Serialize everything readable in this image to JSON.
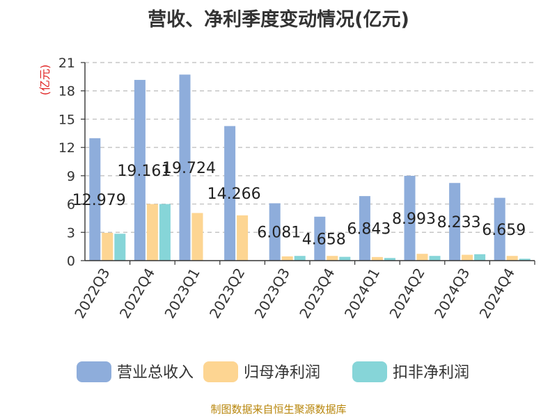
{
  "title": "营收、净利季度变动情况(亿元)",
  "source": "制图数据来自恒生聚源数据库",
  "colors": {
    "revenue": "#8EADDB",
    "net_profit": "#FDD592",
    "deducted_net_profit": "#86D5D8",
    "unit_label": "#E02020",
    "source": "#B8860B"
  },
  "chart_data": {
    "type": "bar",
    "title": "营收、净利季度变动情况(亿元)",
    "ylabel": "(亿元)",
    "xlabel": "",
    "ylim": [
      0,
      21
    ],
    "yticks": [
      0,
      3,
      6,
      9,
      12,
      15,
      18,
      21
    ],
    "grid": true,
    "legend_position": "bottom",
    "categories": [
      "2022Q3",
      "2022Q4",
      "2023Q1",
      "2023Q2",
      "2023Q3",
      "2023Q4",
      "2024Q1",
      "2024Q2",
      "2024Q3",
      "2024Q4"
    ],
    "series": [
      {
        "name": "营业总收入",
        "color_key": "revenue",
        "values": [
          12.979,
          19.161,
          19.724,
          14.266,
          6.081,
          4.658,
          6.843,
          8.993,
          8.233,
          6.659
        ],
        "labels": [
          "12.979",
          "19.161",
          "19.724",
          "14.266",
          "6.081",
          "4.658",
          "6.843",
          "8.993",
          "8.233",
          "6.659"
        ]
      },
      {
        "name": "归母净利润",
        "color_key": "net_profit",
        "values": [
          2.95,
          6.0,
          5.05,
          4.8,
          0.45,
          0.5,
          0.38,
          0.72,
          0.62,
          0.5
        ]
      },
      {
        "name": "扣非净利润",
        "color_key": "deducted_net_profit",
        "values": [
          2.85,
          6.0,
          0,
          0,
          0.5,
          0.4,
          0.28,
          0.5,
          0.68,
          0.2
        ]
      }
    ]
  }
}
